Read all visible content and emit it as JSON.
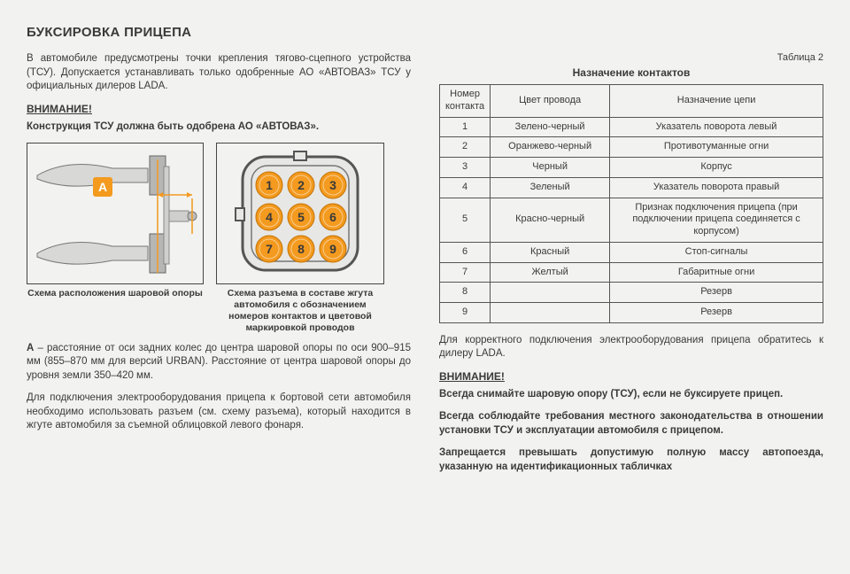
{
  "title": "БУКСИРОВКА ПРИЦЕПА",
  "intro": "В автомобиле предусмотрены точки крепления тягово-сцепного устройства (ТСУ). Допускается устанавливать только одобренные АО «АВТОВАЗ» ТСУ у официальных дилеров LADA.",
  "warn1_heading": "ВНИМАНИЕ!",
  "warn1_text": "Конструкция ТСУ должна быть одобрена АО «АВТОВАЗ».",
  "diagram_a": {
    "label": "A",
    "badge_color": "#f39a1f",
    "caption": "Схема расположения шаровой опоры"
  },
  "diagram_b": {
    "caption": "Схема разъема в составе жгута автомобиля с обозначением номеров контактов и цветовой маркировкой проводов",
    "pins": [
      "1",
      "2",
      "3",
      "4",
      "5",
      "6",
      "7",
      "8",
      "9"
    ],
    "pin_fill": "#f39a1f",
    "pin_text": "#3a3a3a",
    "shell_fill": "#e7e7e5",
    "shell_stroke": "#555"
  },
  "note_a": "A – расстояние от оси задних колес до центра шаровой опоры по оси 900–915 мм (855–870 мм для версий URBAN). Расстояние от центра шаровой опоры до уровня земли 350–420 мм.",
  "note_wiring": "Для подключения электрооборудования прицепа к бортовой сети автомобиля необходимо использовать разъем (см. схему разъема), который находится в жгуте автомобиля за съемной облицовкой левого фонаря.",
  "table_label": "Таблица 2",
  "table_title": "Назначение контактов",
  "table_headers": [
    "Номер контакта",
    "Цвет провода",
    "Назначение цепи"
  ],
  "table_rows": [
    {
      "n": "1",
      "color": "Зелено-черный",
      "purpose": "Указатель поворота левый"
    },
    {
      "n": "2",
      "color": "Оранжево-черный",
      "purpose": "Противотуманные огни"
    },
    {
      "n": "3",
      "color": "Черный",
      "purpose": "Корпус"
    },
    {
      "n": "4",
      "color": "Зеленый",
      "purpose": "Указатель поворота правый"
    },
    {
      "n": "5",
      "color": "Красно-черный",
      "purpose": "Признак подключения прицепа (при подключении прицепа соединяется с корпусом)"
    },
    {
      "n": "6",
      "color": "Красный",
      "purpose": "Стоп-сигналы"
    },
    {
      "n": "7",
      "color": "Желтый",
      "purpose": "Габаритные огни"
    },
    {
      "n": "8",
      "color": "",
      "purpose": "Резерв"
    },
    {
      "n": "9",
      "color": "",
      "purpose": "Резерв"
    }
  ],
  "right_para": "Для корректного подключения электрооборудования прицепа обратитесь к дилеру LADA.",
  "warn2_heading": "ВНИМАНИЕ!",
  "warn2_lines": [
    "Всегда снимайте шаровую опору (ТСУ), если не буксируете прицеп.",
    "Всегда соблюдайте требования местного законодательства в отношении установки ТСУ и эксплуатации автомобиля с прицепом.",
    "Запрещается превышать допустимую полную массу автопоезда, указанную на идентификационных табличках"
  ],
  "colors": {
    "accent": "#f39a1f",
    "text": "#3a3a3a",
    "border": "#555",
    "bg": "#f2f2f0"
  }
}
